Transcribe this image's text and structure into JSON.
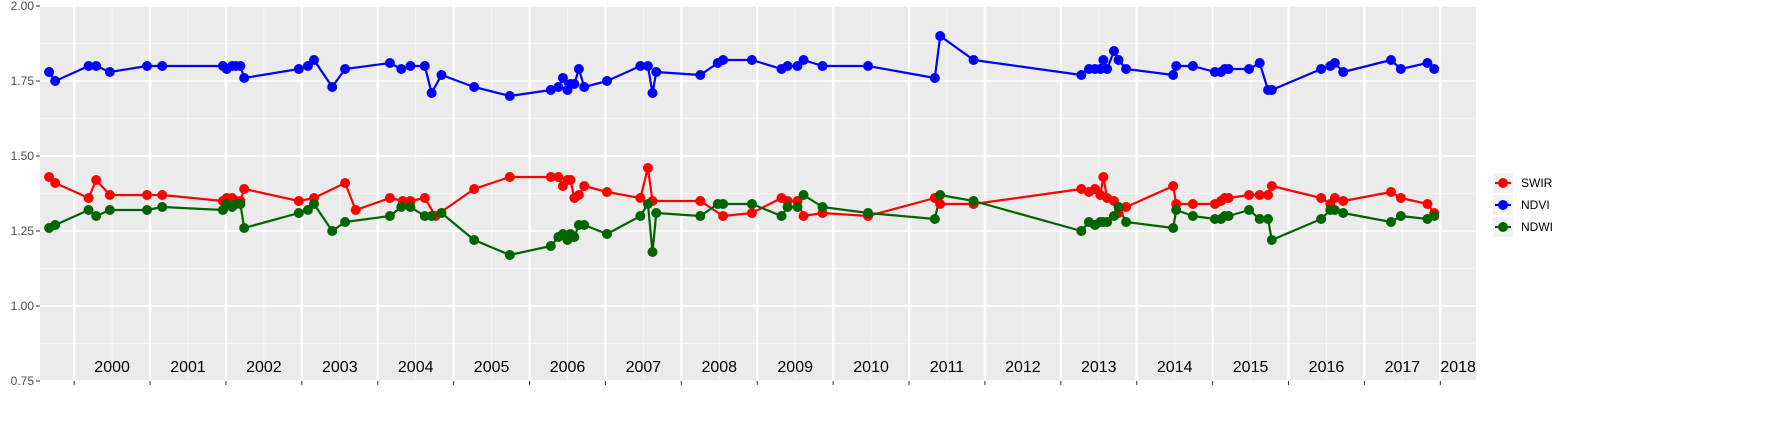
{
  "chart_data": {
    "type": "line",
    "title": "",
    "xlabel": "",
    "ylabel": "",
    "ylim": [
      0.75,
      2.0
    ],
    "xlim": [
      1999.55,
      2018.47
    ],
    "y_ticks": [
      "0.75",
      "1.00",
      "1.25",
      "1.50",
      "1.75",
      "2.00"
    ],
    "year_labels": [
      "2000",
      "2001",
      "2002",
      "2003",
      "2004",
      "2005",
      "2006",
      "2007",
      "2008",
      "2009",
      "2010",
      "2011",
      "2012",
      "2013",
      "2014",
      "2015",
      "2016",
      "2017",
      "2018"
    ],
    "grid": true,
    "legend_position": "right",
    "series": [
      {
        "name": "SWIR",
        "color": "#ff0000",
        "points": [
          [
            1999.67,
            1.43
          ],
          [
            1999.75,
            1.41
          ],
          [
            2000.19,
            1.36
          ],
          [
            2000.29,
            1.42
          ],
          [
            2000.47,
            1.37
          ],
          [
            2000.96,
            1.37
          ],
          [
            2001.16,
            1.37
          ],
          [
            2001.96,
            1.35
          ],
          [
            2002.01,
            1.36
          ],
          [
            2002.08,
            1.36
          ],
          [
            2002.13,
            1.35
          ],
          [
            2002.19,
            1.35
          ],
          [
            2002.24,
            1.39
          ],
          [
            2002.96,
            1.35
          ],
          [
            2003.16,
            1.36
          ],
          [
            2003.57,
            1.41
          ],
          [
            2003.71,
            1.32
          ],
          [
            2004.16,
            1.36
          ],
          [
            2004.33,
            1.35
          ],
          [
            2004.43,
            1.35
          ],
          [
            2004.62,
            1.36
          ],
          [
            2004.76,
            1.3
          ],
          [
            2005.27,
            1.39
          ],
          [
            2005.74,
            1.43
          ],
          [
            2006.28,
            1.43
          ],
          [
            2006.38,
            1.43
          ],
          [
            2006.44,
            1.4
          ],
          [
            2006.5,
            1.42
          ],
          [
            2006.54,
            1.42
          ],
          [
            2006.59,
            1.36
          ],
          [
            2006.65,
            1.37
          ],
          [
            2006.72,
            1.4
          ],
          [
            2007.02,
            1.38
          ],
          [
            2007.46,
            1.36
          ],
          [
            2007.56,
            1.46
          ],
          [
            2007.62,
            1.35
          ],
          [
            2008.25,
            1.35
          ],
          [
            2008.55,
            1.3
          ],
          [
            2008.93,
            1.31
          ],
          [
            2009.32,
            1.36
          ],
          [
            2009.4,
            1.35
          ],
          [
            2009.53,
            1.35
          ],
          [
            2009.61,
            1.3
          ],
          [
            2009.86,
            1.31
          ],
          [
            2010.46,
            1.3
          ],
          [
            2011.34,
            1.36
          ],
          [
            2011.41,
            1.34
          ],
          [
            2011.85,
            1.34
          ],
          [
            2013.27,
            1.39
          ],
          [
            2013.37,
            1.38
          ],
          [
            2013.45,
            1.39
          ],
          [
            2013.52,
            1.37
          ],
          [
            2013.56,
            1.43
          ],
          [
            2013.61,
            1.36
          ],
          [
            2013.7,
            1.35
          ],
          [
            2013.76,
            1.31
          ],
          [
            2013.86,
            1.33
          ],
          [
            2014.48,
            1.4
          ],
          [
            2014.52,
            1.34
          ],
          [
            2014.74,
            1.34
          ],
          [
            2015.03,
            1.34
          ],
          [
            2015.11,
            1.35
          ],
          [
            2015.16,
            1.36
          ],
          [
            2015.21,
            1.36
          ],
          [
            2015.48,
            1.37
          ],
          [
            2015.62,
            1.37
          ],
          [
            2015.73,
            1.37
          ],
          [
            2015.78,
            1.4
          ],
          [
            2016.43,
            1.36
          ],
          [
            2016.55,
            1.34
          ],
          [
            2016.61,
            1.36
          ],
          [
            2016.72,
            1.35
          ],
          [
            2017.35,
            1.38
          ],
          [
            2017.48,
            1.36
          ],
          [
            2017.83,
            1.34
          ],
          [
            2017.92,
            1.31
          ]
        ]
      },
      {
        "name": "NDVI",
        "color": "#0000ff",
        "points": [
          [
            1999.67,
            1.78
          ],
          [
            1999.75,
            1.75
          ],
          [
            2000.19,
            1.8
          ],
          [
            2000.29,
            1.8
          ],
          [
            2000.47,
            1.78
          ],
          [
            2000.96,
            1.8
          ],
          [
            2001.16,
            1.8
          ],
          [
            2001.96,
            1.8
          ],
          [
            2002.01,
            1.79
          ],
          [
            2002.08,
            1.8
          ],
          [
            2002.13,
            1.8
          ],
          [
            2002.19,
            1.8
          ],
          [
            2002.24,
            1.76
          ],
          [
            2002.96,
            1.79
          ],
          [
            2003.08,
            1.8
          ],
          [
            2003.16,
            1.82
          ],
          [
            2003.4,
            1.73
          ],
          [
            2003.57,
            1.79
          ],
          [
            2004.16,
            1.81
          ],
          [
            2004.31,
            1.79
          ],
          [
            2004.43,
            1.8
          ],
          [
            2004.62,
            1.8
          ],
          [
            2004.71,
            1.71
          ],
          [
            2004.84,
            1.77
          ],
          [
            2005.27,
            1.73
          ],
          [
            2005.74,
            1.7
          ],
          [
            2006.28,
            1.72
          ],
          [
            2006.38,
            1.73
          ],
          [
            2006.44,
            1.76
          ],
          [
            2006.5,
            1.72
          ],
          [
            2006.54,
            1.74
          ],
          [
            2006.59,
            1.74
          ],
          [
            2006.65,
            1.79
          ],
          [
            2006.72,
            1.73
          ],
          [
            2007.02,
            1.75
          ],
          [
            2007.46,
            1.8
          ],
          [
            2007.56,
            1.8
          ],
          [
            2007.62,
            1.71
          ],
          [
            2007.67,
            1.78
          ],
          [
            2008.25,
            1.77
          ],
          [
            2008.48,
            1.81
          ],
          [
            2008.55,
            1.82
          ],
          [
            2008.93,
            1.82
          ],
          [
            2009.32,
            1.79
          ],
          [
            2009.4,
            1.8
          ],
          [
            2009.53,
            1.8
          ],
          [
            2009.61,
            1.82
          ],
          [
            2009.86,
            1.8
          ],
          [
            2010.46,
            1.8
          ],
          [
            2011.34,
            1.76
          ],
          [
            2011.41,
            1.9
          ],
          [
            2011.85,
            1.82
          ],
          [
            2013.27,
            1.77
          ],
          [
            2013.37,
            1.79
          ],
          [
            2013.45,
            1.79
          ],
          [
            2013.52,
            1.79
          ],
          [
            2013.56,
            1.82
          ],
          [
            2013.61,
            1.79
          ],
          [
            2013.7,
            1.85
          ],
          [
            2013.76,
            1.82
          ],
          [
            2013.86,
            1.79
          ],
          [
            2014.48,
            1.77
          ],
          [
            2014.52,
            1.8
          ],
          [
            2014.74,
            1.8
          ],
          [
            2015.03,
            1.78
          ],
          [
            2015.11,
            1.78
          ],
          [
            2015.16,
            1.79
          ],
          [
            2015.21,
            1.79
          ],
          [
            2015.48,
            1.79
          ],
          [
            2015.62,
            1.81
          ],
          [
            2015.73,
            1.72
          ],
          [
            2015.78,
            1.72
          ],
          [
            2016.43,
            1.79
          ],
          [
            2016.55,
            1.8
          ],
          [
            2016.61,
            1.81
          ],
          [
            2016.72,
            1.78
          ],
          [
            2017.35,
            1.82
          ],
          [
            2017.48,
            1.79
          ],
          [
            2017.83,
            1.81
          ],
          [
            2017.92,
            1.79
          ]
        ]
      },
      {
        "name": "NDWI",
        "color": "#006400",
        "points": [
          [
            1999.67,
            1.26
          ],
          [
            1999.75,
            1.27
          ],
          [
            2000.19,
            1.32
          ],
          [
            2000.29,
            1.3
          ],
          [
            2000.47,
            1.32
          ],
          [
            2000.96,
            1.32
          ],
          [
            2001.16,
            1.33
          ],
          [
            2001.96,
            1.32
          ],
          [
            2002.01,
            1.34
          ],
          [
            2002.08,
            1.33
          ],
          [
            2002.13,
            1.34
          ],
          [
            2002.19,
            1.34
          ],
          [
            2002.24,
            1.26
          ],
          [
            2002.96,
            1.31
          ],
          [
            2003.08,
            1.32
          ],
          [
            2003.16,
            1.34
          ],
          [
            2003.4,
            1.25
          ],
          [
            2003.57,
            1.28
          ],
          [
            2004.16,
            1.3
          ],
          [
            2004.31,
            1.33
          ],
          [
            2004.43,
            1.33
          ],
          [
            2004.62,
            1.3
          ],
          [
            2004.71,
            1.3
          ],
          [
            2004.84,
            1.31
          ],
          [
            2005.27,
            1.22
          ],
          [
            2005.74,
            1.17
          ],
          [
            2006.28,
            1.2
          ],
          [
            2006.38,
            1.23
          ],
          [
            2006.44,
            1.24
          ],
          [
            2006.5,
            1.22
          ],
          [
            2006.54,
            1.24
          ],
          [
            2006.59,
            1.23
          ],
          [
            2006.65,
            1.27
          ],
          [
            2006.72,
            1.27
          ],
          [
            2007.02,
            1.24
          ],
          [
            2007.46,
            1.3
          ],
          [
            2007.56,
            1.34
          ],
          [
            2007.62,
            1.18
          ],
          [
            2007.67,
            1.31
          ],
          [
            2008.25,
            1.3
          ],
          [
            2008.48,
            1.34
          ],
          [
            2008.55,
            1.34
          ],
          [
            2008.93,
            1.34
          ],
          [
            2009.32,
            1.3
          ],
          [
            2009.4,
            1.33
          ],
          [
            2009.53,
            1.33
          ],
          [
            2009.61,
            1.37
          ],
          [
            2009.86,
            1.33
          ],
          [
            2010.46,
            1.31
          ],
          [
            2011.34,
            1.29
          ],
          [
            2011.41,
            1.37
          ],
          [
            2011.85,
            1.35
          ],
          [
            2013.27,
            1.25
          ],
          [
            2013.37,
            1.28
          ],
          [
            2013.45,
            1.27
          ],
          [
            2013.52,
            1.28
          ],
          [
            2013.56,
            1.28
          ],
          [
            2013.61,
            1.28
          ],
          [
            2013.7,
            1.3
          ],
          [
            2013.76,
            1.33
          ],
          [
            2013.86,
            1.28
          ],
          [
            2014.48,
            1.26
          ],
          [
            2014.52,
            1.32
          ],
          [
            2014.74,
            1.3
          ],
          [
            2015.03,
            1.29
          ],
          [
            2015.11,
            1.29
          ],
          [
            2015.16,
            1.3
          ],
          [
            2015.21,
            1.3
          ],
          [
            2015.48,
            1.32
          ],
          [
            2015.62,
            1.29
          ],
          [
            2015.73,
            1.29
          ],
          [
            2015.78,
            1.22
          ],
          [
            2016.43,
            1.29
          ],
          [
            2016.55,
            1.32
          ],
          [
            2016.61,
            1.32
          ],
          [
            2016.72,
            1.31
          ],
          [
            2017.35,
            1.28
          ],
          [
            2017.48,
            1.3
          ],
          [
            2017.83,
            1.29
          ],
          [
            2017.92,
            1.3
          ]
        ]
      }
    ]
  }
}
